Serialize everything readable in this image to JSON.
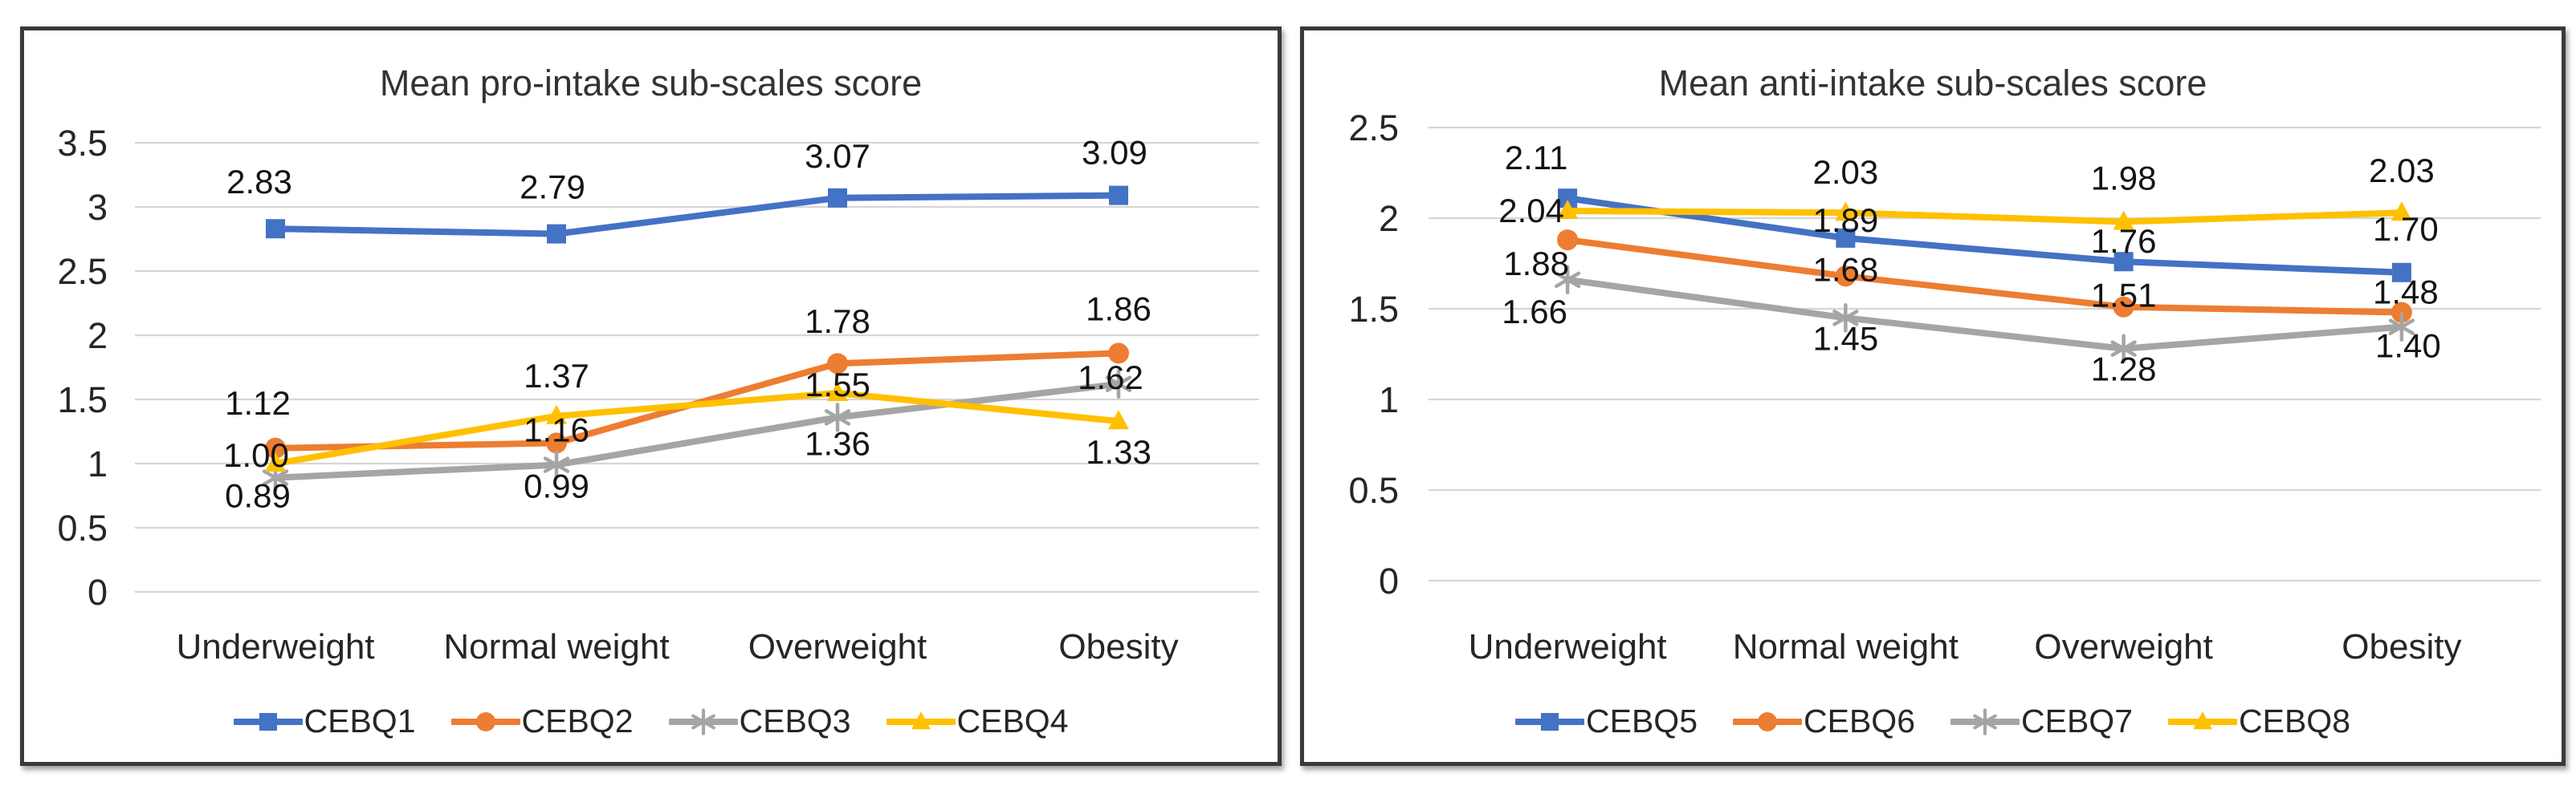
{
  "figure": {
    "background": "#ffffff",
    "panel_border_color": "#3a3a3a",
    "gridline_color": "#d6d6d6",
    "text_color": "#262626"
  },
  "chart_data": [
    {
      "type": "line",
      "title": "Mean pro-intake sub-scales score",
      "categories": [
        "Underweight",
        "Normal weight",
        "Overweight",
        "Obesity"
      ],
      "ylim": [
        0,
        3.5
      ],
      "y_tick_labels": [
        "0",
        "0.5",
        "1",
        "1.5",
        "2",
        "2.5",
        "3",
        "3.5"
      ],
      "grid": true,
      "legend_position": "bottom",
      "series": [
        {
          "name": "CEBQ1",
          "color": "#4472C4",
          "marker": "square",
          "values": [
            2.83,
            2.79,
            3.07,
            3.09
          ],
          "labels": [
            "2.83",
            "2.79",
            "3.07",
            "3.09"
          ]
        },
        {
          "name": "CEBQ2",
          "color": "#ED7D31",
          "marker": "circle",
          "values": [
            1.12,
            1.16,
            1.78,
            1.86
          ],
          "labels": [
            "1.12",
            "1.16",
            "1.78",
            "1.86"
          ]
        },
        {
          "name": "CEBQ3",
          "color": "#A5A5A5",
          "marker": "asterisk",
          "values": [
            0.89,
            0.99,
            1.36,
            1.62
          ],
          "labels": [
            "0.89",
            "0.99",
            "1.36",
            "1.62"
          ]
        },
        {
          "name": "CEBQ4",
          "color": "#FFC000",
          "marker": "triangle",
          "values": [
            1.0,
            1.37,
            1.55,
            1.33
          ],
          "labels": [
            "1.00",
            "1.37",
            "1.55",
            "1.33"
          ]
        }
      ]
    },
    {
      "type": "line",
      "title": "Mean anti-intake sub-scales score",
      "categories": [
        "Underweight",
        "Normal weight",
        "Overweight",
        "Obesity"
      ],
      "ylim": [
        0,
        2.5
      ],
      "y_tick_labels": [
        "0",
        "0.5",
        "1",
        "1.5",
        "2",
        "2.5"
      ],
      "grid": true,
      "legend_position": "bottom",
      "series": [
        {
          "name": "CEBQ5",
          "color": "#4472C4",
          "marker": "square",
          "values": [
            2.11,
            1.89,
            1.76,
            1.7
          ],
          "labels": [
            "2.11",
            "1.89",
            "1.76",
            "1.70"
          ]
        },
        {
          "name": "CEBQ6",
          "color": "#ED7D31",
          "marker": "circle",
          "values": [
            1.88,
            1.68,
            1.51,
            1.48
          ],
          "labels": [
            "1.88",
            "1.68",
            "1.51",
            "1.48"
          ]
        },
        {
          "name": "CEBQ7",
          "color": "#A5A5A5",
          "marker": "asterisk",
          "values": [
            1.66,
            1.45,
            1.28,
            1.4
          ],
          "labels": [
            "1.66",
            "1.45",
            "1.28",
            "1.40"
          ]
        },
        {
          "name": "CEBQ8",
          "color": "#FFC000",
          "marker": "triangle",
          "values": [
            2.04,
            2.03,
            1.98,
            2.03
          ],
          "labels": [
            "2.04",
            "2.03",
            "1.98",
            "2.03"
          ]
        }
      ]
    }
  ]
}
